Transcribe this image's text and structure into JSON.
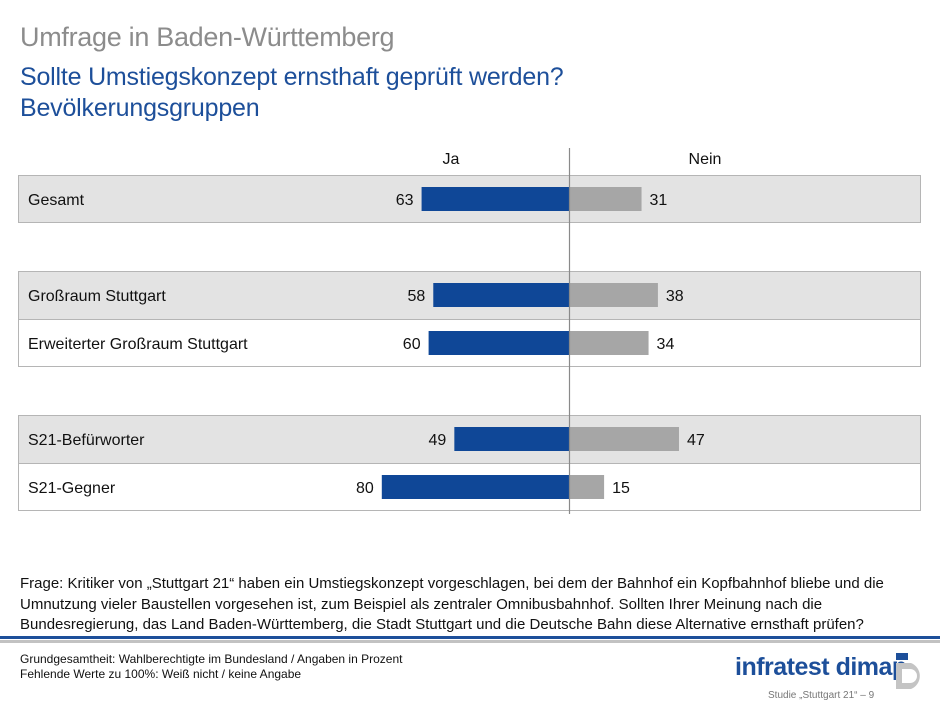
{
  "header": {
    "survey": "Umfrage in Baden-Württemberg",
    "title_line1": "Sollte Umstiegskonzept ernsthaft geprüft werden?",
    "title_line2": "Bevölkerungsgruppen"
  },
  "colors": {
    "yes": "#0f4797",
    "no": "#a6a6a6",
    "accent": "#1d4f9a",
    "row_bg": "#e3e3e3"
  },
  "chart_data": {
    "type": "bar",
    "orientation": "horizontal-diverging",
    "title": "Sollte Umstiegskonzept ernsthaft geprüft werden?",
    "series": [
      {
        "name": "Ja",
        "values": [
          63,
          58,
          60,
          49,
          80
        ]
      },
      {
        "name": "Nein",
        "values": [
          31,
          38,
          34,
          47,
          15
        ]
      }
    ],
    "categories": [
      "Gesamt",
      "Großraum Stuttgart",
      "Erweiterter Großraum Stuttgart",
      "S21-Befürworter",
      "S21-Gegner"
    ],
    "groups": [
      [
        0
      ],
      [
        1,
        2
      ],
      [
        3,
        4
      ]
    ],
    "unit": "%",
    "xlim": [
      -100,
      100
    ]
  },
  "question": "Frage: Kritiker von „Stuttgart 21“ haben ein Umstiegskonzept vorgeschlagen, bei dem der Bahnhof ein Kopfbahnhof bliebe und die Umnutzung vieler Baustellen vorgesehen ist, zum Beispiel als zentraler Omnibusbahnhof. Sollten Ihrer Meinung nach die Bundesregierung, das Land Baden-Württemberg, die Stadt Stuttgart und die Deutsche Bahn diese Alternative ernsthaft prüfen?",
  "footer": {
    "base_line1": "Grundgesamtheit: Wahlberechtigte im Bundesland / Angaben in Prozent",
    "base_line2": "Fehlende Werte zu 100%: Weiß nicht / keine Angabe",
    "logo": "infratest dimap",
    "study": "Studie „Stuttgart 21“ – 9"
  }
}
